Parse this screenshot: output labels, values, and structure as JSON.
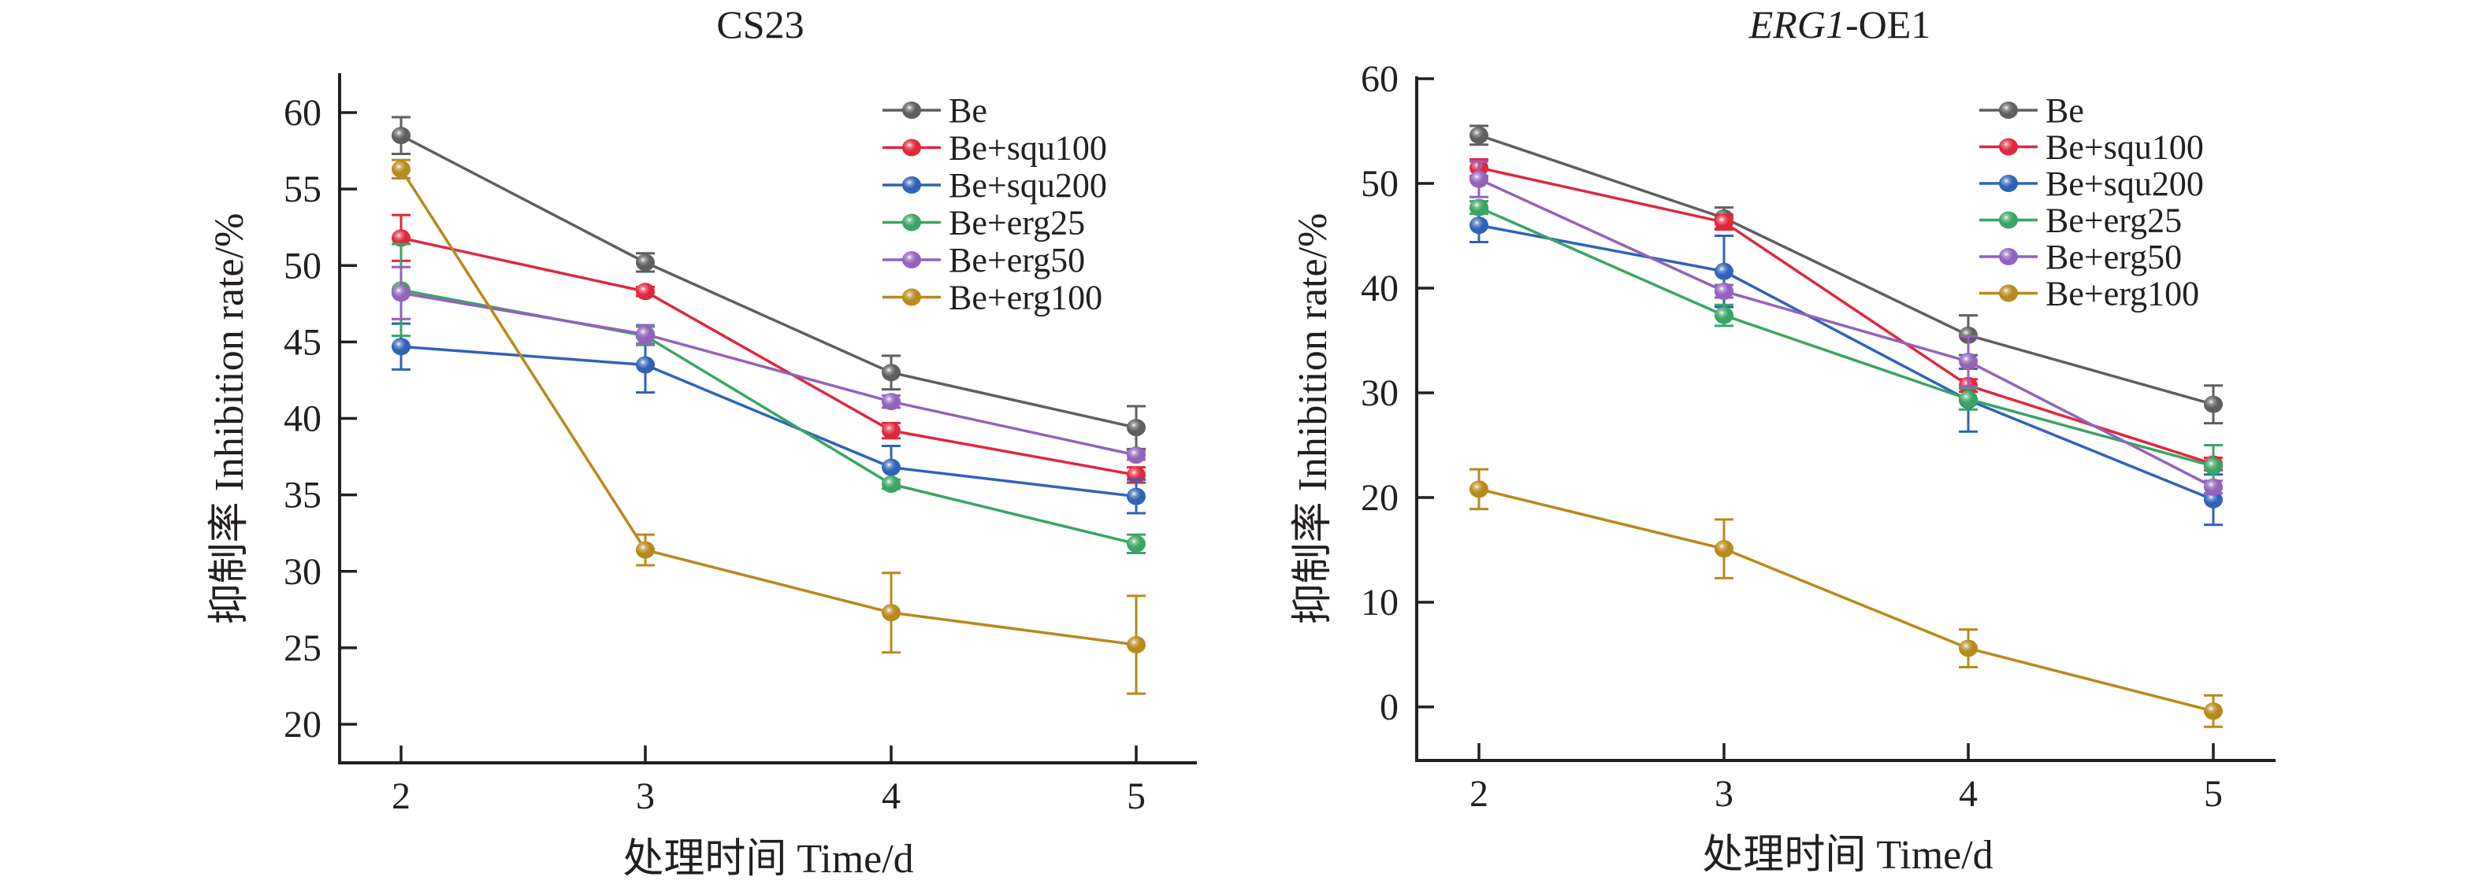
{
  "chart_data": [
    {
      "type": "line",
      "title": "CS23",
      "xlabel": "处理时间 Time/d",
      "ylabel": "抑制率 Inhibition rate/%",
      "x": [
        2,
        3,
        4,
        5
      ],
      "xticks": [
        "2",
        "3",
        "4",
        "5"
      ],
      "yticks": [
        "20",
        "25",
        "30",
        "35",
        "40",
        "45",
        "50",
        "55",
        "60"
      ],
      "ylim": [
        18,
        62.5
      ],
      "grid": false,
      "legend_position": "top-right",
      "series": [
        {
          "name": "Be",
          "color": "#5f5f60",
          "values": [
            58.5,
            50.2,
            43.0,
            39.4
          ],
          "errors": [
            1.2,
            0.6,
            1.1,
            1.4
          ]
        },
        {
          "name": "Be+squ100",
          "color": "#e0283c",
          "values": [
            51.8,
            48.3,
            39.2,
            36.3
          ],
          "errors": [
            1.5,
            0.3,
            0.5,
            0.5
          ]
        },
        {
          "name": "Be+squ200",
          "color": "#2f63b8",
          "values": [
            44.7,
            43.5,
            36.8,
            34.9
          ],
          "errors": [
            1.5,
            1.8,
            1.4,
            1.1
          ]
        },
        {
          "name": "Be+erg25",
          "color": "#3aa564",
          "values": [
            48.4,
            45.4,
            35.7,
            31.8
          ],
          "errors": [
            3.0,
            0.6,
            0.3,
            0.6
          ]
        },
        {
          "name": "Be+erg50",
          "color": "#9362bd",
          "values": [
            48.2,
            45.5,
            41.1,
            37.6
          ],
          "errors": [
            1.7,
            0.6,
            0.4,
            0.3
          ]
        },
        {
          "name": "Be+erg100",
          "color": "#b8891c",
          "values": [
            56.3,
            31.4,
            27.3,
            25.2
          ],
          "errors": [
            0.6,
            1.0,
            2.6,
            3.2
          ]
        }
      ]
    },
    {
      "type": "line",
      "title_italic": "ERG1",
      "title_rest": "-OE1",
      "xlabel": "处理时间 Time/d",
      "ylabel": "抑制率 Inhibition rate/%",
      "x": [
        2,
        3,
        4,
        5
      ],
      "xticks": [
        "2",
        "3",
        "4",
        "5"
      ],
      "yticks": [
        "0",
        "10",
        "20",
        "30",
        "40",
        "50",
        "60"
      ],
      "ylim": [
        -5,
        60.5
      ],
      "grid": false,
      "legend_position": "top-right",
      "series": [
        {
          "name": "Be",
          "color": "#5f5f60",
          "values": [
            54.6,
            46.7,
            35.5,
            28.9
          ],
          "errors": [
            0.9,
            1.0,
            1.9,
            1.8
          ]
        },
        {
          "name": "Be+squ100",
          "color": "#e0283c",
          "values": [
            51.5,
            46.3,
            30.7,
            23.2
          ],
          "errors": [
            0.8,
            0.7,
            0.6,
            0.6
          ]
        },
        {
          "name": "Be+squ200",
          "color": "#2f63b8",
          "values": [
            46.0,
            41.6,
            29.3,
            19.8
          ],
          "errors": [
            1.6,
            3.4,
            3.0,
            2.4
          ]
        },
        {
          "name": "Be+erg25",
          "color": "#3aa564",
          "values": [
            47.7,
            37.4,
            29.4,
            23.0
          ],
          "errors": [
            0.6,
            1.0,
            1.0,
            2.0
          ]
        },
        {
          "name": "Be+erg50",
          "color": "#9362bd",
          "values": [
            50.4,
            39.7,
            33.0,
            21.0
          ],
          "errors": [
            1.7,
            0.6,
            2.4,
            0.6
          ]
        },
        {
          "name": "Be+erg100",
          "color": "#b8891c",
          "values": [
            20.8,
            15.1,
            5.6,
            -0.4
          ],
          "errors": [
            1.9,
            2.8,
            1.8,
            1.5
          ]
        }
      ]
    }
  ]
}
